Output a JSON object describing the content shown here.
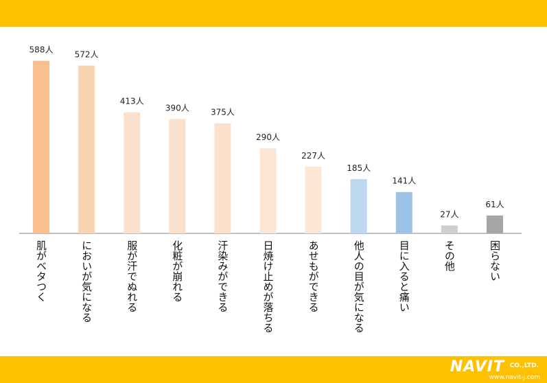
{
  "colors": {
    "band": "#ffc000",
    "axis": "#808080",
    "brand_text": "#ffffff"
  },
  "logo": {
    "brand": "NAVIT",
    "suffix": "CO.,LTD.",
    "url": "www.navit-j.com"
  },
  "chart_data": {
    "type": "bar",
    "categories": [
      "肌がベタつく",
      "においが気になる",
      "服が汗でぬれる",
      "化粧が崩れる",
      "汗染みができる",
      "日焼け止めが落ちる",
      "あせもができる",
      "他人の目が気になる",
      "目に入ると痛い",
      "その他",
      "困らない"
    ],
    "values": [
      588,
      572,
      413,
      390,
      375,
      290,
      227,
      185,
      141,
      27,
      61
    ],
    "data_labels": [
      "588人",
      "572人",
      "413人",
      "390人",
      "375人",
      "290人",
      "227人",
      "185人",
      "141人",
      "27人",
      "61人"
    ],
    "bar_colors": [
      "#f9bf8f",
      "#fad3b3",
      "#fbe1cc",
      "#fbe1cc",
      "#fbe1cc",
      "#fce6d6",
      "#fce6d6",
      "#bdd7ee",
      "#9dc3e6",
      "#d0cece",
      "#a6a6a6"
    ],
    "ylim": [
      0,
      620
    ],
    "grid": false,
    "legend": "none",
    "title": "",
    "xlabel": "",
    "ylabel": ""
  }
}
